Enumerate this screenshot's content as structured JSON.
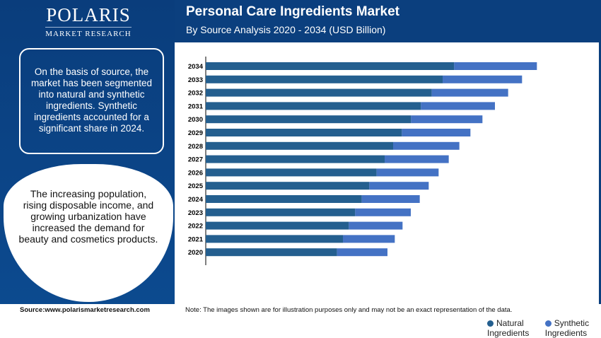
{
  "brand": {
    "name": "POLARIS",
    "tagline": "MARKET RESEARCH"
  },
  "panel": {
    "box1": "On the basis of source, the market has been segmented into natural and synthetic ingredients. Synthetic ingredients accounted for a significant share in 2024.",
    "box2": "The increasing population, rising disposable income, and growing urbanization have increased the demand for beauty and cosmetics products."
  },
  "footer": {
    "source": "Source:www.polarismarketresearch.com",
    "note": "Note: The images shown are for illustration purposes only and may not be an exact representation of the data."
  },
  "colors": {
    "natural": "#245f8f",
    "synthetic": "#4472c4",
    "brand": "#0b3f7e"
  },
  "chart_data": {
    "type": "bar",
    "orientation": "horizontal",
    "stacked": true,
    "title": "Personal Care Ingredients Market",
    "subtitle": "By Source Analysis 2020 - 2034 (USD Billion)",
    "categories": [
      "2034",
      "2033",
      "2032",
      "2031",
      "2030",
      "2029",
      "2028",
      "2027",
      "2026",
      "2025",
      "2024",
      "2023",
      "2022",
      "2021",
      "2020"
    ],
    "series": [
      {
        "name": "Natural Ingredients",
        "values": [
          105.4,
          100.5,
          95.9,
          91.3,
          87.1,
          83.2,
          79.5,
          75.9,
          72.5,
          69.4,
          66.2,
          63.4,
          60.7,
          58.2,
          55.7
        ]
      },
      {
        "name": "Synthetic Ingredients",
        "values": [
          35.1,
          33.7,
          32.4,
          31.4,
          30.3,
          29.1,
          28.1,
          27.2,
          26.3,
          25.2,
          24.6,
          23.6,
          22.8,
          22.0,
          21.4
        ]
      }
    ],
    "xlim": [
      0,
      141
    ],
    "grid": false,
    "x_axis_labels": false,
    "legend": "bottom"
  }
}
